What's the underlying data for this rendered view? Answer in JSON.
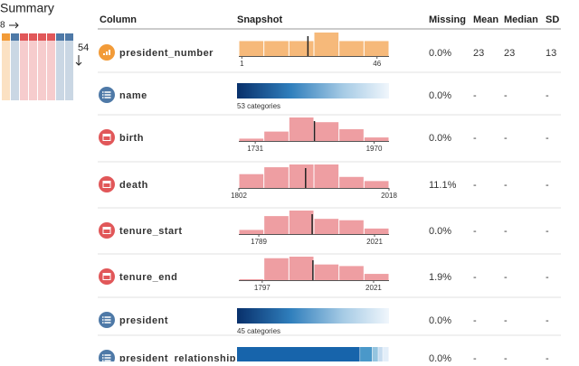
{
  "summary": {
    "title": "Summary",
    "columns": "8",
    "rows": "54"
  },
  "table": {
    "headers": [
      "Column",
      "Snapshot",
      "Missing",
      "Mean",
      "Median",
      "SD"
    ],
    "rows": [
      {
        "name": "president_number",
        "icon_color": "#f29b38",
        "bar_color": "#f6b97a",
        "missing": "0.0%",
        "mean": 23,
        "median": 23,
        "sd": 13,
        "snapshot": {
          "xlim": [
            0,
            50
          ],
          "counts": [
            7,
            7,
            7,
            11,
            7,
            7
          ],
          "median": 23,
          "ticks": [
            1,
            46
          ]
        }
      },
      {
        "name": "name",
        "icon_color": "#4e79a7",
        "missing": "0.0%",
        "mean": "-",
        "median": "-",
        "sd": "-",
        "snapshot": {
          "label": "53 categories"
        }
      },
      {
        "name": "birth",
        "icon_color": "#e15759",
        "bar_color": "#ee9ea2",
        "missing": "0.0%",
        "mean": "-",
        "median": "-",
        "sd": "-",
        "snapshot": {
          "xlim": [
            1698,
            2000
          ],
          "counts": [
            1,
            4,
            10,
            8,
            5,
            1.5
          ],
          "median": 1850,
          "ticks": [
            1731,
            1970
          ]
        }
      },
      {
        "name": "death",
        "icon_color": "#e15759",
        "bar_color": "#ee9ea2",
        "missing": "11.1%",
        "mean": "-",
        "median": "-",
        "sd": "-",
        "snapshot": {
          "xlim": [
            1802,
            2018
          ],
          "counts": [
            5,
            7.5,
            8.5,
            8.5,
            4,
            2.5
          ],
          "median": 1898,
          "ticks": [
            1802,
            2018
          ]
        }
      },
      {
        "name": "tenure_start",
        "icon_color": "#e15759",
        "bar_color": "#ee9ea2",
        "missing": "0.0%",
        "mean": "-",
        "median": "-",
        "sd": "-",
        "snapshot": {
          "xlim": [
            1749,
            2050
          ],
          "counts": [
            1.5,
            6.5,
            8.5,
            5.5,
            5,
            2
          ],
          "median": 1896,
          "ticks": [
            1789,
            2021
          ]
        }
      },
      {
        "name": "tenure_end",
        "icon_color": "#e15759",
        "bar_color": "#ee9ea2",
        "missing": "1.9%",
        "mean": "-",
        "median": "-",
        "sd": "-",
        "snapshot": {
          "xlim": [
            1750,
            2052
          ],
          "counts": [
            0.3,
            7,
            7.5,
            5,
            4.5,
            2
          ],
          "median": 1899,
          "ticks": [
            1797,
            2021
          ]
        }
      },
      {
        "name": "president",
        "icon_color": "#4e79a7",
        "missing": "0.0%",
        "mean": "-",
        "median": "-",
        "sd": "-",
        "snapshot": {
          "label": "45 categories"
        }
      },
      {
        "name": "president_relationship",
        "icon_color": "#4e79a7",
        "missing": "0.0%",
        "mean": "-",
        "median": "-",
        "sd": "-",
        "snapshot": {
          "segments": [
            81,
            8,
            4,
            3,
            4
          ]
        }
      }
    ]
  }
}
